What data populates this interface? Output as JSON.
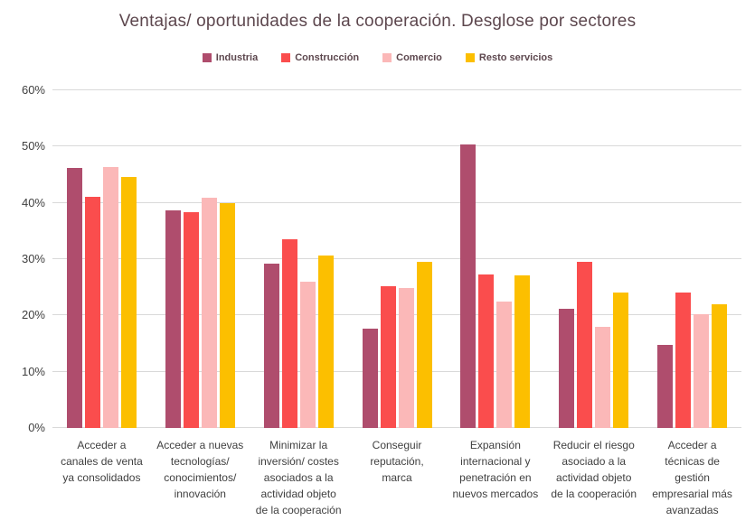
{
  "chart_data": {
    "type": "bar",
    "title": "Ventajas/ oportunidades de la cooperación. Desglose por sectores",
    "xlabel": "",
    "ylabel": "",
    "ylim": [
      0,
      60
    ],
    "yticks": [
      0,
      10,
      20,
      30,
      40,
      50,
      60
    ],
    "ytick_suffix": "%",
    "grid": true,
    "legend_position": "top-center",
    "background_color": "#ffffff",
    "gridline_color": "#d9d9d9",
    "title_color": "#5d474e",
    "axis_label_color": "#404040",
    "categories": [
      "Acceder a\ncanales de venta\nya consolidados",
      "Acceder a nuevas\ntecnologías/\nconocimientos/\ninnovación",
      "Minimizar la\ninversión/ costes\nasociados a la\nactividad objeto\nde la cooperación",
      "Conseguir\nreputación,\nmarca",
      "Expansión\ninternacional y\npenetración en\nnuevos mercados",
      "Reducir el riesgo\nasociado a la\nactividad objeto\nde la cooperación",
      "Acceder a\ntécnicas de\ngestión\nempresarial más\navanzadas"
    ],
    "series": [
      {
        "name": "Industria",
        "color": "#af4d6d",
        "values": [
          46.2,
          38.6,
          29.2,
          17.7,
          50.3,
          21.2,
          14.7
        ]
      },
      {
        "name": "Construcción",
        "color": "#fa4d4d",
        "values": [
          41.1,
          38.3,
          33.5,
          25.2,
          27.3,
          29.5,
          24.0
        ]
      },
      {
        "name": "Comercio",
        "color": "#fbb8b8",
        "values": [
          46.4,
          40.9,
          26.0,
          24.9,
          22.5,
          17.9,
          20.2
        ]
      },
      {
        "name": "Resto servicios",
        "color": "#fcbf00",
        "values": [
          44.6,
          40.0,
          30.7,
          29.6,
          27.1,
          24.1,
          22.0
        ]
      }
    ]
  }
}
